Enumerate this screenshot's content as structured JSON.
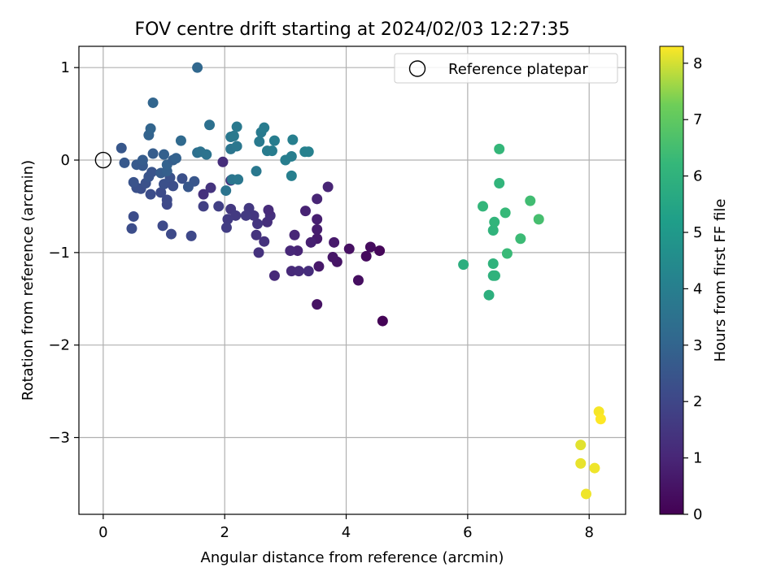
{
  "chart_data": {
    "type": "scatter",
    "title": "FOV centre drift starting at 2024/02/03 12:27:35",
    "xlabel": "Angular distance from reference (arcmin)",
    "ylabel": "Rotation from reference (arcmin)",
    "xlim": [
      -0.4,
      8.6
    ],
    "ylim": [
      -3.83,
      1.23
    ],
    "xticks": [
      0,
      2,
      4,
      6,
      8
    ],
    "yticks": [
      -3,
      -2,
      -1,
      0,
      1
    ],
    "grid": true,
    "legend": {
      "placement": "top-right",
      "label": "Reference platepar"
    },
    "reference_point": {
      "x": 0,
      "y": 0
    },
    "colorbar": {
      "label": "Hours from first FF file",
      "range": [
        0,
        8.3
      ],
      "ticks": [
        0,
        1,
        2,
        3,
        4,
        5,
        6,
        7,
        8
      ],
      "colormap": "viridis"
    },
    "points": [
      {
        "x": 4.6,
        "y": -1.74,
        "h": 0.05
      },
      {
        "x": 4.55,
        "y": -0.98,
        "h": 0.15
      },
      {
        "x": 4.33,
        "y": -1.04,
        "h": 0.25
      },
      {
        "x": 4.4,
        "y": -0.94,
        "h": 0.3
      },
      {
        "x": 4.2,
        "y": -1.3,
        "h": 0.35
      },
      {
        "x": 4.05,
        "y": -0.96,
        "h": 0.4
      },
      {
        "x": 3.52,
        "y": -1.56,
        "h": 0.45
      },
      {
        "x": 3.85,
        "y": -1.1,
        "h": 0.5
      },
      {
        "x": 3.78,
        "y": -1.05,
        "h": 0.55
      },
      {
        "x": 3.55,
        "y": -1.15,
        "h": 0.6
      },
      {
        "x": 3.8,
        "y": -0.89,
        "h": 0.65
      },
      {
        "x": 3.52,
        "y": -0.85,
        "h": 0.7
      },
      {
        "x": 3.52,
        "y": -0.75,
        "h": 0.75
      },
      {
        "x": 3.52,
        "y": -0.64,
        "h": 0.8
      },
      {
        "x": 3.42,
        "y": -0.89,
        "h": 0.85
      },
      {
        "x": 3.33,
        "y": -0.55,
        "h": 0.9
      },
      {
        "x": 3.2,
        "y": -0.98,
        "h": 0.95
      },
      {
        "x": 3.15,
        "y": -0.81,
        "h": 1.0
      },
      {
        "x": 3.08,
        "y": -0.98,
        "h": 1.05
      },
      {
        "x": 3.1,
        "y": -1.2,
        "h": 1.1
      },
      {
        "x": 3.22,
        "y": -1.2,
        "h": 1.15
      },
      {
        "x": 3.38,
        "y": -1.2,
        "h": 1.2
      },
      {
        "x": 3.7,
        "y": -0.29,
        "h": 0.95
      },
      {
        "x": 3.52,
        "y": -0.42,
        "h": 0.95
      },
      {
        "x": 2.82,
        "y": -1.25,
        "h": 1.1
      },
      {
        "x": 2.7,
        "y": -0.67,
        "h": 1.25
      },
      {
        "x": 2.75,
        "y": -0.6,
        "h": 1.3
      },
      {
        "x": 2.65,
        "y": -0.88,
        "h": 1.35
      },
      {
        "x": 2.56,
        "y": -1.0,
        "h": 1.35
      },
      {
        "x": 2.52,
        "y": -0.81,
        "h": 1.4
      },
      {
        "x": 2.54,
        "y": -0.69,
        "h": 1.45
      },
      {
        "x": 2.48,
        "y": -0.6,
        "h": 1.5
      },
      {
        "x": 2.4,
        "y": -0.52,
        "h": 1.55
      },
      {
        "x": 2.35,
        "y": -0.6,
        "h": 1.6
      },
      {
        "x": 2.72,
        "y": -0.54,
        "h": 1.15
      },
      {
        "x": 2.1,
        "y": -0.53,
        "h": 1.55
      },
      {
        "x": 2.18,
        "y": -0.6,
        "h": 1.6
      },
      {
        "x": 2.05,
        "y": -0.64,
        "h": 1.65
      },
      {
        "x": 2.03,
        "y": -0.73,
        "h": 1.7
      },
      {
        "x": 1.9,
        "y": -0.5,
        "h": 1.75
      },
      {
        "x": 1.65,
        "y": -0.5,
        "h": 1.8
      },
      {
        "x": 1.65,
        "y": -0.37,
        "h": 1.3
      },
      {
        "x": 1.77,
        "y": -0.3,
        "h": 1.4
      },
      {
        "x": 1.97,
        "y": -0.02,
        "h": 1.2
      },
      {
        "x": 2.1,
        "y": -0.22,
        "h": 1.35
      },
      {
        "x": 1.45,
        "y": -0.82,
        "h": 2.05
      },
      {
        "x": 1.12,
        "y": -0.8,
        "h": 2.1
      },
      {
        "x": 0.98,
        "y": -0.71,
        "h": 2.1
      },
      {
        "x": 0.47,
        "y": -0.74,
        "h": 2.2
      },
      {
        "x": 0.5,
        "y": -0.61,
        "h": 2.2
      },
      {
        "x": 1.05,
        "y": -0.48,
        "h": 2.05
      },
      {
        "x": 1.05,
        "y": -0.43,
        "h": 2.1
      },
      {
        "x": 0.95,
        "y": -0.35,
        "h": 2.15
      },
      {
        "x": 0.78,
        "y": -0.37,
        "h": 2.2
      },
      {
        "x": 0.62,
        "y": -0.31,
        "h": 2.25
      },
      {
        "x": 0.55,
        "y": -0.3,
        "h": 2.3
      },
      {
        "x": 0.7,
        "y": -0.25,
        "h": 2.35
      },
      {
        "x": 0.5,
        "y": -0.24,
        "h": 2.4
      },
      {
        "x": 0.75,
        "y": -0.18,
        "h": 2.45
      },
      {
        "x": 0.8,
        "y": -0.13,
        "h": 2.45
      },
      {
        "x": 1.0,
        "y": -0.26,
        "h": 2.3
      },
      {
        "x": 1.1,
        "y": -0.19,
        "h": 2.35
      },
      {
        "x": 1.15,
        "y": -0.28,
        "h": 2.25
      },
      {
        "x": 1.3,
        "y": -0.2,
        "h": 2.3
      },
      {
        "x": 1.5,
        "y": -0.23,
        "h": 2.5
      },
      {
        "x": 1.4,
        "y": -0.29,
        "h": 2.55
      },
      {
        "x": 0.35,
        "y": -0.03,
        "h": 2.6
      },
      {
        "x": 0.55,
        "y": -0.05,
        "h": 2.65
      },
      {
        "x": 0.65,
        "y": -0.06,
        "h": 2.6
      },
      {
        "x": 0.65,
        "y": 0.0,
        "h": 2.7
      },
      {
        "x": 0.3,
        "y": 0.13,
        "h": 2.55
      },
      {
        "x": 0.82,
        "y": 0.07,
        "h": 2.75
      },
      {
        "x": 0.95,
        "y": -0.14,
        "h": 2.7
      },
      {
        "x": 1.05,
        "y": -0.12,
        "h": 2.8
      },
      {
        "x": 1.0,
        "y": 0.06,
        "h": 2.85
      },
      {
        "x": 1.05,
        "y": -0.05,
        "h": 2.9
      },
      {
        "x": 1.15,
        "y": 0.0,
        "h": 2.8
      },
      {
        "x": 1.2,
        "y": 0.02,
        "h": 2.9
      },
      {
        "x": 0.75,
        "y": 0.27,
        "h": 2.95
      },
      {
        "x": 0.78,
        "y": 0.34,
        "h": 3.0
      },
      {
        "x": 0.82,
        "y": 0.62,
        "h": 3.05
      },
      {
        "x": 1.55,
        "y": 1.0,
        "h": 3.1
      },
      {
        "x": 1.28,
        "y": 0.21,
        "h": 3.2
      },
      {
        "x": 1.55,
        "y": 0.08,
        "h": 3.4
      },
      {
        "x": 1.6,
        "y": 0.09,
        "h": 3.5
      },
      {
        "x": 1.7,
        "y": 0.06,
        "h": 3.55
      },
      {
        "x": 1.75,
        "y": 0.38,
        "h": 3.45
      },
      {
        "x": 2.02,
        "y": -0.33,
        "h": 3.6
      },
      {
        "x": 2.12,
        "y": -0.21,
        "h": 3.65
      },
      {
        "x": 2.22,
        "y": -0.21,
        "h": 3.7
      },
      {
        "x": 2.1,
        "y": 0.12,
        "h": 3.65
      },
      {
        "x": 2.2,
        "y": 0.15,
        "h": 3.7
      },
      {
        "x": 2.1,
        "y": 0.25,
        "h": 3.75
      },
      {
        "x": 2.15,
        "y": 0.26,
        "h": 3.8
      },
      {
        "x": 2.2,
        "y": 0.36,
        "h": 3.8
      },
      {
        "x": 2.52,
        "y": -0.12,
        "h": 3.75
      },
      {
        "x": 2.57,
        "y": 0.2,
        "h": 3.85
      },
      {
        "x": 2.6,
        "y": 0.3,
        "h": 3.85
      },
      {
        "x": 2.65,
        "y": 0.35,
        "h": 3.9
      },
      {
        "x": 2.7,
        "y": 0.1,
        "h": 3.9
      },
      {
        "x": 2.78,
        "y": 0.1,
        "h": 3.95
      },
      {
        "x": 2.82,
        "y": 0.21,
        "h": 3.95
      },
      {
        "x": 3.0,
        "y": 0.0,
        "h": 4.0
      },
      {
        "x": 3.1,
        "y": 0.04,
        "h": 4.0
      },
      {
        "x": 3.1,
        "y": -0.17,
        "h": 4.05
      },
      {
        "x": 3.12,
        "y": 0.22,
        "h": 4.05
      },
      {
        "x": 3.32,
        "y": 0.09,
        "h": 4.1
      },
      {
        "x": 3.38,
        "y": 0.09,
        "h": 4.1
      },
      {
        "x": 5.93,
        "y": -1.13,
        "h": 5.85
      },
      {
        "x": 6.35,
        "y": -1.46,
        "h": 5.9
      },
      {
        "x": 6.42,
        "y": -1.25,
        "h": 5.95
      },
      {
        "x": 6.45,
        "y": -1.25,
        "h": 6.0
      },
      {
        "x": 6.42,
        "y": -1.12,
        "h": 6.0
      },
      {
        "x": 6.42,
        "y": -0.76,
        "h": 6.05
      },
      {
        "x": 6.44,
        "y": -0.67,
        "h": 6.1
      },
      {
        "x": 6.25,
        "y": -0.5,
        "h": 6.15
      },
      {
        "x": 6.52,
        "y": -0.25,
        "h": 6.1
      },
      {
        "x": 6.52,
        "y": 0.12,
        "h": 6.2
      },
      {
        "x": 6.62,
        "y": -0.57,
        "h": 6.25
      },
      {
        "x": 6.65,
        "y": -1.01,
        "h": 6.3
      },
      {
        "x": 6.87,
        "y": -0.85,
        "h": 6.35
      },
      {
        "x": 7.03,
        "y": -0.44,
        "h": 6.45
      },
      {
        "x": 7.17,
        "y": -0.64,
        "h": 6.55
      },
      {
        "x": 7.86,
        "y": -3.08,
        "h": 8.1
      },
      {
        "x": 7.86,
        "y": -3.28,
        "h": 8.15
      },
      {
        "x": 7.95,
        "y": -3.61,
        "h": 8.2
      },
      {
        "x": 8.09,
        "y": -3.33,
        "h": 8.2
      },
      {
        "x": 8.16,
        "y": -2.72,
        "h": 8.25
      },
      {
        "x": 8.19,
        "y": -2.8,
        "h": 8.3
      }
    ]
  }
}
